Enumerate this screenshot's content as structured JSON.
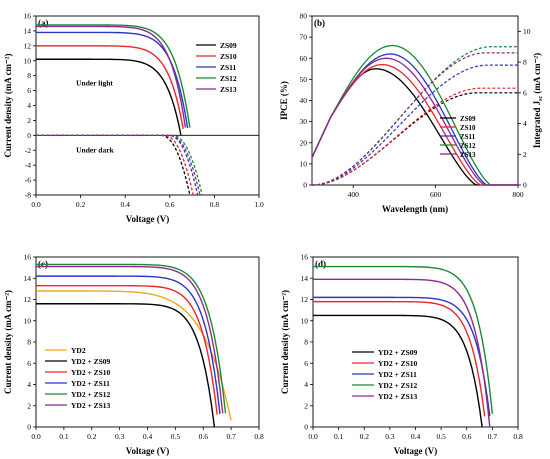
{
  "colors": {
    "ZS09": "#000000",
    "ZS10": "#e8262b",
    "ZS11": "#2a36c8",
    "ZS12": "#1c8a33",
    "ZS13": "#8e2a8c",
    "YD2": "#f2a623"
  },
  "chart_data": [
    {
      "type": "line",
      "panel_label": "(a)",
      "xlabel": "Voltage (V)",
      "ylabel": "Current density (mA cm⁻²)",
      "xlim": [
        0.0,
        1.0
      ],
      "ylim": [
        -8,
        16
      ],
      "xticks": [
        0.0,
        0.2,
        0.4,
        0.6,
        0.8,
        1.0
      ],
      "yticks": [
        -8,
        -6,
        -4,
        -2,
        0,
        2,
        4,
        6,
        8,
        10,
        12,
        14,
        16
      ],
      "annotations": [
        "Under light",
        "Under dark"
      ],
      "legend_position": "right",
      "light_series": [
        {
          "name": "ZS09",
          "jsc": 10.2,
          "voc": 0.65
        },
        {
          "name": "ZS10",
          "jsc": 12.0,
          "voc": 0.665
        },
        {
          "name": "ZS11",
          "jsc": 13.8,
          "voc": 0.685
        },
        {
          "name": "ZS12",
          "jsc": 14.8,
          "voc": 0.695
        },
        {
          "name": "ZS13",
          "jsc": 14.6,
          "voc": 0.675
        }
      ],
      "dark_series": [
        {
          "name": "ZS09",
          "onset": 0.56,
          "v_at_min": 0.69
        },
        {
          "name": "ZS10",
          "onset": 0.575,
          "v_at_min": 0.705
        },
        {
          "name": "ZS11",
          "onset": 0.595,
          "v_at_min": 0.725
        },
        {
          "name": "ZS12",
          "onset": 0.61,
          "v_at_min": 0.745
        },
        {
          "name": "ZS13",
          "onset": 0.6,
          "v_at_min": 0.735
        }
      ]
    },
    {
      "type": "line",
      "panel_label": "(b)",
      "xlabel": "Wavelength (nm)",
      "ylabel": "IPCE (%)",
      "y2label": "Integrated J",
      "y2label_sub": "sc",
      "y2label_unit": " (mA cm⁻²)",
      "xlim": [
        300,
        800
      ],
      "ylim": [
        0,
        80
      ],
      "y2lim": [
        0,
        11
      ],
      "xticks": [
        400,
        600,
        800
      ],
      "yticks": [
        0,
        10,
        20,
        30,
        40,
        50,
        60,
        70,
        80
      ],
      "y2ticks": [
        0,
        2,
        4,
        6,
        8,
        10
      ],
      "legend_position": "center-right",
      "series": [
        {
          "name": "ZS09",
          "peak": 55,
          "peak_wl": 455,
          "cutoff_wl": 700,
          "integrated_jsc": 6.0
        },
        {
          "name": "ZS10",
          "peak": 57,
          "peak_wl": 470,
          "cutoff_wl": 710,
          "integrated_jsc": 6.3
        },
        {
          "name": "ZS11",
          "peak": 62,
          "peak_wl": 490,
          "cutoff_wl": 725,
          "integrated_jsc": 7.8
        },
        {
          "name": "ZS12",
          "peak": 66,
          "peak_wl": 495,
          "cutoff_wl": 735,
          "integrated_jsc": 9.0
        },
        {
          "name": "ZS13",
          "peak": 60,
          "peak_wl": 480,
          "cutoff_wl": 720,
          "integrated_jsc": 8.6
        }
      ]
    },
    {
      "type": "line",
      "panel_label": "(c)",
      "xlabel": "Voltage (V)",
      "ylabel": "Current density (mA cm⁻²)",
      "xlim": [
        0.0,
        0.8
      ],
      "ylim": [
        0,
        16
      ],
      "xticks": [
        0.0,
        0.1,
        0.2,
        0.3,
        0.4,
        0.5,
        0.6,
        0.7,
        0.8
      ],
      "yticks": [
        0,
        2,
        4,
        6,
        8,
        10,
        12,
        14,
        16
      ],
      "legend_position": "bottom-left",
      "series": [
        {
          "name": "YD2",
          "jsc": 12.8,
          "voc": 0.705
        },
        {
          "name": "YD2 + ZS09",
          "jsc": 11.6,
          "voc": 0.64
        },
        {
          "name": "YD2 + ZS10",
          "jsc": 13.3,
          "voc": 0.655
        },
        {
          "name": "YD2 + ZS11",
          "jsc": 14.2,
          "voc": 0.665
        },
        {
          "name": "YD2 + ZS12",
          "jsc": 15.3,
          "voc": 0.685
        },
        {
          "name": "YD2 + ZS13",
          "jsc": 15.1,
          "voc": 0.675
        }
      ]
    },
    {
      "type": "line",
      "panel_label": "(d)",
      "xlabel": "Voltage (V)",
      "ylabel": "Current density (mA cm⁻²)",
      "xlim": [
        0.0,
        0.8
      ],
      "ylim": [
        0,
        16
      ],
      "xticks": [
        0.0,
        0.1,
        0.2,
        0.3,
        0.4,
        0.5,
        0.6,
        0.7,
        0.8
      ],
      "yticks": [
        0,
        2,
        4,
        6,
        8,
        10,
        12,
        14,
        16
      ],
      "legend_position": "bottom-left",
      "series": [
        {
          "name": "YD2 + ZS09",
          "jsc": 10.5,
          "voc": 0.66
        },
        {
          "name": "YD2 + ZS10",
          "jsc": 11.8,
          "voc": 0.675
        },
        {
          "name": "YD2 + ZS11",
          "jsc": 12.2,
          "voc": 0.695
        },
        {
          "name": "YD2 + ZS12",
          "jsc": 15.1,
          "voc": 0.705
        },
        {
          "name": "YD2 + ZS13",
          "jsc": 13.9,
          "voc": 0.69
        }
      ]
    }
  ]
}
